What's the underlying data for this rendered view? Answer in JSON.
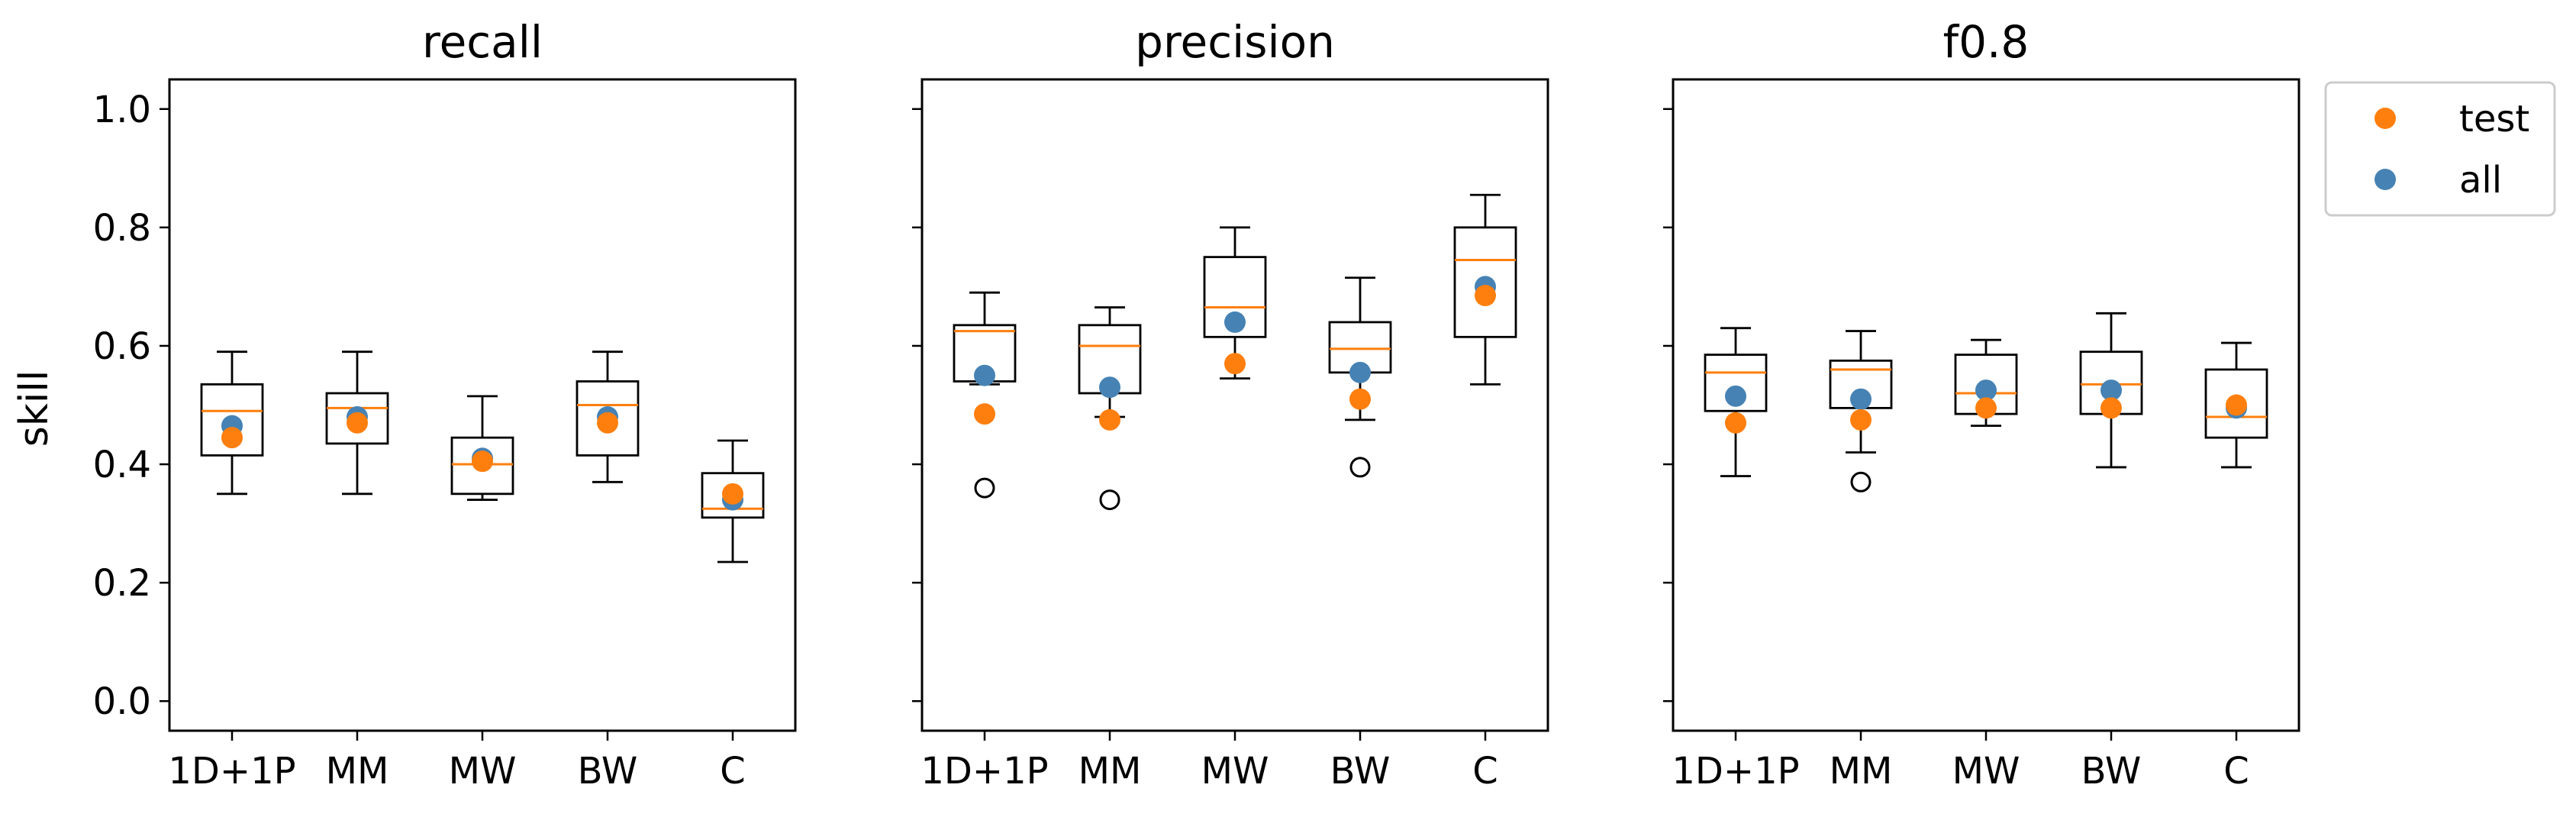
{
  "chart_data": {
    "type": "box",
    "ylabel": "skill",
    "ylim": [
      -0.05,
      1.05
    ],
    "yticks": [
      0.0,
      0.2,
      0.4,
      0.6,
      0.8,
      1.0
    ],
    "ytick_labels": [
      "0.0",
      "0.2",
      "0.4",
      "0.6",
      "0.8",
      "1.0"
    ],
    "categories": [
      "1D+1P",
      "MM",
      "MW",
      "BW",
      "C"
    ],
    "legend": {
      "position": "outside-top-right",
      "entries": [
        {
          "label": "test",
          "color": "#ff7f0e"
        },
        {
          "label": "all",
          "color": "#4682b4"
        }
      ]
    },
    "colors": {
      "median": "#ff7f0e",
      "test": "#ff7f0e",
      "all": "#4682b4",
      "box": "#000000"
    },
    "panels": [
      {
        "title": "recall",
        "boxes": [
          {
            "category": "1D+1P",
            "whislo": 0.35,
            "q1": 0.415,
            "med": 0.49,
            "q3": 0.535,
            "whishi": 0.59,
            "fliers": [],
            "all": 0.465,
            "test": 0.445
          },
          {
            "category": "MM",
            "whislo": 0.35,
            "q1": 0.435,
            "med": 0.495,
            "q3": 0.52,
            "whishi": 0.59,
            "fliers": [],
            "all": 0.48,
            "test": 0.47
          },
          {
            "category": "MW",
            "whislo": 0.34,
            "q1": 0.35,
            "med": 0.4,
            "q3": 0.445,
            "whishi": 0.515,
            "fliers": [],
            "all": 0.41,
            "test": 0.405
          },
          {
            "category": "BW",
            "whislo": 0.37,
            "q1": 0.415,
            "med": 0.5,
            "q3": 0.54,
            "whishi": 0.59,
            "fliers": [],
            "all": 0.48,
            "test": 0.47
          },
          {
            "category": "C",
            "whislo": 0.235,
            "q1": 0.31,
            "med": 0.325,
            "q3": 0.385,
            "whishi": 0.44,
            "fliers": [],
            "all": 0.34,
            "test": 0.35
          }
        ]
      },
      {
        "title": "precision",
        "boxes": [
          {
            "category": "1D+1P",
            "whislo": 0.535,
            "q1": 0.54,
            "med": 0.625,
            "q3": 0.635,
            "whishi": 0.69,
            "fliers": [
              0.36
            ],
            "all": 0.55,
            "test": 0.485
          },
          {
            "category": "MM",
            "whislo": 0.48,
            "q1": 0.52,
            "med": 0.6,
            "q3": 0.635,
            "whishi": 0.665,
            "fliers": [
              0.34
            ],
            "all": 0.53,
            "test": 0.475
          },
          {
            "category": "MW",
            "whislo": 0.545,
            "q1": 0.615,
            "med": 0.665,
            "q3": 0.75,
            "whishi": 0.8,
            "fliers": [],
            "all": 0.64,
            "test": 0.57
          },
          {
            "category": "BW",
            "whislo": 0.475,
            "q1": 0.555,
            "med": 0.595,
            "q3": 0.64,
            "whishi": 0.715,
            "fliers": [
              0.395
            ],
            "all": 0.555,
            "test": 0.51
          },
          {
            "category": "C",
            "whislo": 0.535,
            "q1": 0.615,
            "med": 0.745,
            "q3": 0.8,
            "whishi": 0.855,
            "fliers": [],
            "all": 0.7,
            "test": 0.685
          }
        ]
      },
      {
        "title": "f0.8",
        "boxes": [
          {
            "category": "1D+1P",
            "whislo": 0.38,
            "q1": 0.49,
            "med": 0.555,
            "q3": 0.585,
            "whishi": 0.63,
            "fliers": [],
            "all": 0.515,
            "test": 0.47
          },
          {
            "category": "MM",
            "whislo": 0.42,
            "q1": 0.495,
            "med": 0.56,
            "q3": 0.575,
            "whishi": 0.625,
            "fliers": [
              0.37
            ],
            "all": 0.51,
            "test": 0.475
          },
          {
            "category": "MW",
            "whislo": 0.465,
            "q1": 0.485,
            "med": 0.52,
            "q3": 0.585,
            "whishi": 0.61,
            "fliers": [],
            "all": 0.525,
            "test": 0.495
          },
          {
            "category": "BW",
            "whislo": 0.395,
            "q1": 0.485,
            "med": 0.535,
            "q3": 0.59,
            "whishi": 0.655,
            "fliers": [],
            "all": 0.525,
            "test": 0.495
          },
          {
            "category": "C",
            "whislo": 0.395,
            "q1": 0.445,
            "med": 0.48,
            "q3": 0.56,
            "whishi": 0.605,
            "fliers": [],
            "all": 0.495,
            "test": 0.5
          }
        ]
      }
    ]
  }
}
